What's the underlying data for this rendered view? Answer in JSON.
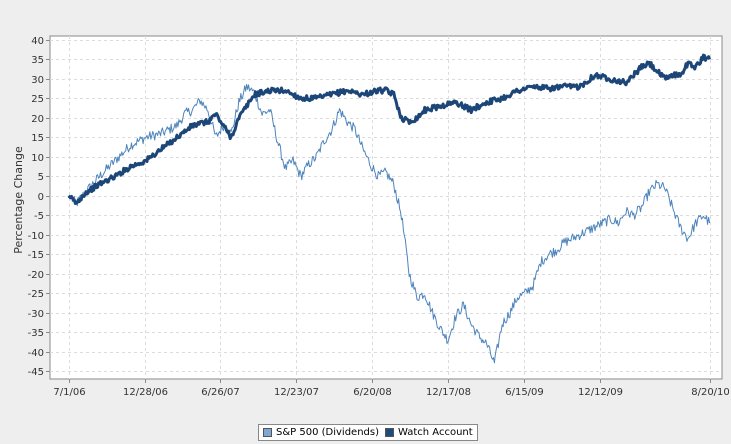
{
  "chart_data": {
    "type": "line",
    "ylabel": "Percentage Change",
    "xlabel": "",
    "ylim": [
      -47,
      41
    ],
    "y_ticks": [
      40,
      35,
      30,
      25,
      20,
      15,
      10,
      5,
      0,
      -5,
      -10,
      -15,
      -20,
      -25,
      -30,
      -35,
      -40,
      -45
    ],
    "x_ticks": [
      "7/1/06",
      "12/28/06",
      "6/26/07",
      "12/23/07",
      "6/20/08",
      "12/17/08",
      "6/15/09",
      "12/12/09",
      "8/20/10"
    ],
    "x_tick_positions": [
      0,
      0.4904,
      0.9808,
      1.4712,
      1.9616,
      2.452,
      2.9425,
      3.4329,
      4.1397
    ],
    "xlim": [
      -0.12,
      4.22
    ],
    "grid": true,
    "legend_position": "bottom-center",
    "series": [
      {
        "name": "S&P 500 (Dividends)",
        "color": "#7fa9d3",
        "stroke": "#4d84bc",
        "x": [
          0,
          0.05,
          0.1,
          0.2,
          0.3,
          0.4,
          0.5,
          0.6,
          0.7,
          0.75,
          0.8,
          0.85,
          0.9,
          0.95,
          1.0,
          1.05,
          1.1,
          1.15,
          1.2,
          1.25,
          1.3,
          1.35,
          1.4,
          1.45,
          1.5,
          1.55,
          1.6,
          1.65,
          1.7,
          1.75,
          1.8,
          1.85,
          1.9,
          1.95,
          2.0,
          2.05,
          2.1,
          2.15,
          2.2,
          2.25,
          2.3,
          2.35,
          2.4,
          2.45,
          2.5,
          2.55,
          2.6,
          2.65,
          2.7,
          2.75,
          2.8,
          2.85,
          2.9,
          2.95,
          3.0,
          3.05,
          3.1,
          3.15,
          3.2,
          3.3,
          3.4,
          3.5,
          3.55,
          3.6,
          3.65,
          3.7,
          3.75,
          3.8,
          3.85,
          3.9,
          3.95,
          4.0,
          4.05,
          4.1,
          4.14
        ],
        "y": [
          0,
          -2,
          0.5,
          5,
          9,
          13,
          15,
          16,
          18,
          21,
          22,
          24.5,
          22,
          15,
          18,
          16,
          24,
          28,
          26.5,
          21,
          22,
          14,
          7,
          9,
          5,
          8,
          10,
          14,
          17,
          22,
          19,
          17,
          12,
          8,
          5,
          6,
          3,
          -5,
          -20,
          -26,
          -25,
          -30,
          -34,
          -37,
          -31,
          -28,
          -33,
          -36,
          -38,
          -43,
          -33,
          -30,
          -26,
          -25,
          -23,
          -17,
          -15,
          -14,
          -12,
          -10,
          -8,
          -6,
          -7,
          -4,
          -5,
          -3,
          1,
          3,
          2,
          -3,
          -8,
          -11,
          -7,
          -5,
          -7
        ]
      },
      {
        "name": "Watch Account",
        "color": "#1e4a7d",
        "stroke": "#1c4677",
        "x": [
          0,
          0.05,
          0.1,
          0.2,
          0.3,
          0.4,
          0.5,
          0.6,
          0.7,
          0.8,
          0.9,
          0.95,
          1.0,
          1.05,
          1.1,
          1.15,
          1.2,
          1.3,
          1.4,
          1.5,
          1.6,
          1.7,
          1.8,
          1.9,
          2.0,
          2.05,
          2.1,
          2.15,
          2.2,
          2.25,
          2.3,
          2.4,
          2.5,
          2.6,
          2.7,
          2.8,
          2.9,
          3.0,
          3.1,
          3.2,
          3.3,
          3.4,
          3.5,
          3.6,
          3.7,
          3.75,
          3.8,
          3.85,
          3.9,
          3.95,
          4.0,
          4.05,
          4.1,
          4.14
        ],
        "y": [
          0,
          -2,
          0.5,
          3,
          5,
          7.5,
          9,
          12,
          15,
          18,
          19,
          21,
          18,
          15,
          20,
          23,
          26,
          27,
          27,
          25,
          25,
          26,
          27,
          26,
          27,
          27,
          26,
          20,
          19,
          20,
          22,
          23,
          24,
          22,
          24,
          25,
          27,
          28,
          27.5,
          28,
          28,
          31,
          30,
          29,
          33,
          34,
          32,
          30,
          31,
          31,
          34,
          33,
          35.5,
          35
        ]
      }
    ]
  }
}
